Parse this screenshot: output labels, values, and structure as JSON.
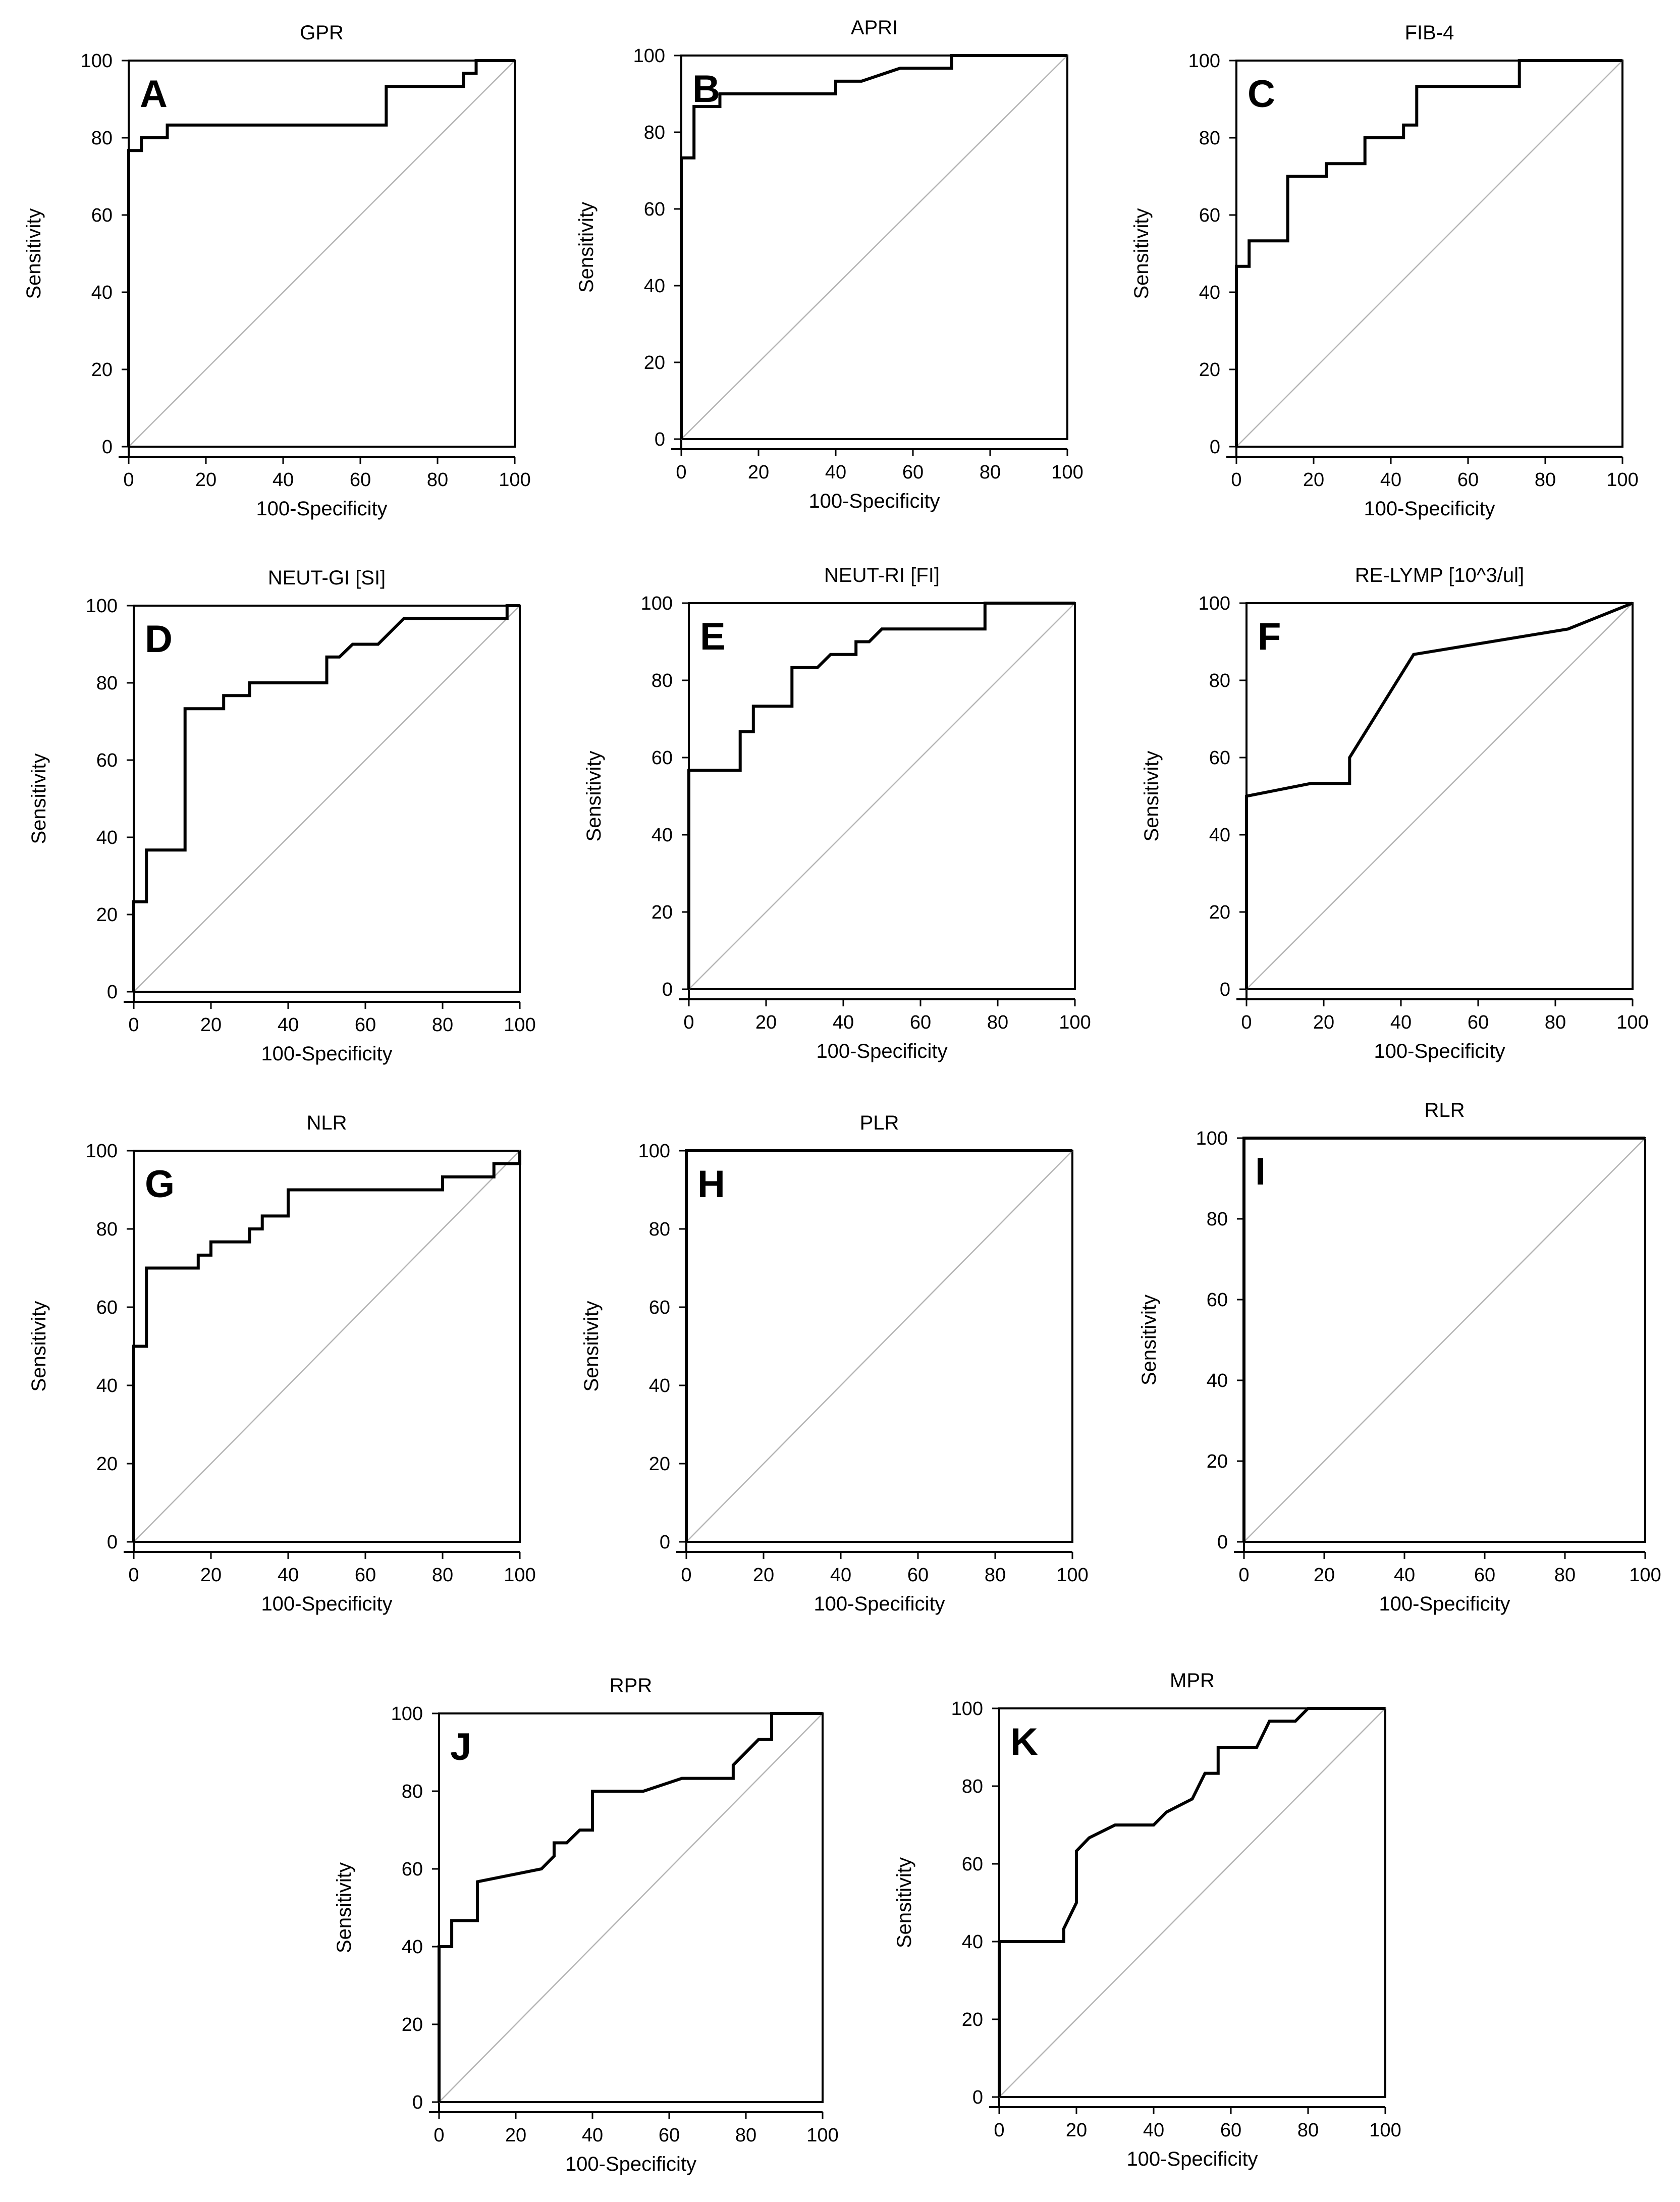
{
  "chart_data": [
    {
      "type": "line",
      "letter": "A",
      "title": "GPR",
      "xlabel": "100-Specificity",
      "ylabel": "Sensitivity",
      "xlim": [
        0,
        100
      ],
      "ylim": [
        0,
        100
      ],
      "xticks": [
        0,
        20,
        40,
        60,
        80,
        100
      ],
      "yticks": [
        0,
        20,
        40,
        60,
        80,
        100
      ],
      "diagonal": true,
      "x": [
        0,
        0,
        3.3,
        3.3,
        10,
        10,
        66.7,
        66.7,
        86.7,
        86.7,
        90,
        90,
        100
      ],
      "y": [
        0,
        76.7,
        76.7,
        80,
        80,
        83.3,
        83.3,
        93.3,
        93.3,
        96.7,
        96.7,
        100,
        100
      ]
    },
    {
      "type": "line",
      "letter": "B",
      "title": "APRI",
      "xlabel": "100-Specificity",
      "ylabel": "Sensitivity",
      "xlim": [
        0,
        100
      ],
      "ylim": [
        0,
        100
      ],
      "xticks": [
        0,
        20,
        40,
        60,
        80,
        100
      ],
      "yticks": [
        0,
        20,
        40,
        60,
        80,
        100
      ],
      "diagonal": true,
      "x": [
        0,
        0,
        3.3,
        3.3,
        10,
        10,
        40,
        40,
        46.7,
        56.7,
        70,
        70,
        100
      ],
      "y": [
        0,
        73.3,
        73.3,
        86.7,
        86.7,
        90,
        90,
        93.3,
        93.3,
        96.7,
        96.7,
        100,
        100
      ]
    },
    {
      "type": "line",
      "letter": "C",
      "title": "FIB-4",
      "xlabel": "100-Specificity",
      "ylabel": "Sensitivity",
      "xlim": [
        0,
        100
      ],
      "ylim": [
        0,
        100
      ],
      "xticks": [
        0,
        20,
        40,
        60,
        80,
        100
      ],
      "yticks": [
        0,
        20,
        40,
        60,
        80,
        100
      ],
      "diagonal": true,
      "x": [
        0,
        0,
        3.3,
        3.3,
        13.3,
        13.3,
        23.3,
        23.3,
        33.3,
        33.3,
        43.3,
        43.3,
        46.7,
        46.7,
        73.3,
        73.3,
        100
      ],
      "y": [
        0,
        46.7,
        46.7,
        53.3,
        53.3,
        70,
        70,
        73.3,
        73.3,
        80,
        80,
        83.3,
        83.3,
        93.3,
        93.3,
        100,
        100
      ]
    },
    {
      "type": "line",
      "letter": "D",
      "title": "NEUT-GI [SI]",
      "xlabel": "100-Specificity",
      "ylabel": "Sensitivity",
      "xlim": [
        0,
        100
      ],
      "ylim": [
        0,
        100
      ],
      "xticks": [
        0,
        20,
        40,
        60,
        80,
        100
      ],
      "yticks": [
        0,
        20,
        40,
        60,
        80,
        100
      ],
      "diagonal": true,
      "x": [
        0,
        0,
        3.3,
        3.3,
        13.3,
        13.3,
        23.3,
        23.3,
        30,
        30,
        50,
        50,
        53.3,
        56.7,
        63.3,
        70,
        96.7,
        96.7,
        100
      ],
      "y": [
        0,
        23.3,
        23.3,
        36.7,
        36.7,
        73.3,
        73.3,
        76.7,
        76.7,
        80,
        80,
        86.7,
        86.7,
        90,
        90,
        96.7,
        96.7,
        100,
        100
      ]
    },
    {
      "type": "line",
      "letter": "E",
      "title": "NEUT-RI [FI]",
      "xlabel": "100-Specificity",
      "ylabel": "Sensitivity",
      "xlim": [
        0,
        100
      ],
      "ylim": [
        0,
        100
      ],
      "xticks": [
        0,
        20,
        40,
        60,
        80,
        100
      ],
      "yticks": [
        0,
        20,
        40,
        60,
        80,
        100
      ],
      "diagonal": true,
      "x": [
        0,
        0,
        13.3,
        13.3,
        16.7,
        16.7,
        26.7,
        26.7,
        33.3,
        36.7,
        43.3,
        43.3,
        46.7,
        50,
        76.7,
        76.7,
        100
      ],
      "y": [
        0,
        56.7,
        56.7,
        66.7,
        66.7,
        73.3,
        73.3,
        83.3,
        83.3,
        86.7,
        86.7,
        90,
        90,
        93.3,
        93.3,
        100,
        100
      ]
    },
    {
      "type": "line",
      "letter": "F",
      "title": "RE-LYMP [10^3/ul]",
      "xlabel": "100-Specificity",
      "ylabel": "Sensitivity",
      "xlim": [
        0,
        100
      ],
      "ylim": [
        0,
        100
      ],
      "xticks": [
        0,
        20,
        40,
        60,
        80,
        100
      ],
      "yticks": [
        0,
        20,
        40,
        60,
        80,
        100
      ],
      "diagonal": true,
      "x": [
        0,
        0,
        16.7,
        26.7,
        26.7,
        43.3,
        83.3,
        100
      ],
      "y": [
        0,
        50,
        53.3,
        53.3,
        60,
        86.7,
        93.3,
        100
      ]
    },
    {
      "type": "line",
      "letter": "G",
      "title": "NLR",
      "xlabel": "100-Specificity",
      "ylabel": "Sensitivity",
      "xlim": [
        0,
        100
      ],
      "ylim": [
        0,
        100
      ],
      "xticks": [
        0,
        20,
        40,
        60,
        80,
        100
      ],
      "yticks": [
        0,
        20,
        40,
        60,
        80,
        100
      ],
      "diagonal": true,
      "x": [
        0,
        0,
        3.3,
        3.3,
        16.7,
        16.7,
        20,
        20,
        30,
        30,
        33.3,
        33.3,
        40,
        40,
        80,
        80,
        93.3,
        93.3,
        100,
        100
      ],
      "y": [
        0,
        50,
        50,
        70,
        70,
        73.3,
        73.3,
        76.7,
        76.7,
        80,
        80,
        83.3,
        83.3,
        90,
        90,
        93.3,
        93.3,
        96.7,
        96.7,
        100
      ]
    },
    {
      "type": "line",
      "letter": "H",
      "title": "PLR",
      "xlabel": "100-Specificity",
      "ylabel": "Sensitivity",
      "xlim": [
        0,
        100
      ],
      "ylim": [
        0,
        100
      ],
      "xticks": [
        0,
        20,
        40,
        60,
        80,
        100
      ],
      "yticks": [
        0,
        20,
        40,
        60,
        80,
        100
      ],
      "diagonal": true,
      "x": [
        0,
        0,
        100
      ],
      "y": [
        0,
        100,
        100
      ]
    },
    {
      "type": "line",
      "letter": "I",
      "title": "RLR",
      "xlabel": "100-Specificity",
      "ylabel": "Sensitivity",
      "xlim": [
        0,
        100
      ],
      "ylim": [
        0,
        100
      ],
      "xticks": [
        0,
        20,
        40,
        60,
        80,
        100
      ],
      "yticks": [
        0,
        20,
        40,
        60,
        80,
        100
      ],
      "diagonal": true,
      "x": [
        0,
        0,
        100
      ],
      "y": [
        0,
        100,
        100
      ]
    },
    {
      "type": "line",
      "letter": "J",
      "title": "RPR",
      "xlabel": "100-Specificity",
      "ylabel": "Sensitivity",
      "xlim": [
        0,
        100
      ],
      "ylim": [
        0,
        100
      ],
      "xticks": [
        0,
        20,
        40,
        60,
        80,
        100
      ],
      "yticks": [
        0,
        20,
        40,
        60,
        80,
        100
      ],
      "diagonal": true,
      "x": [
        0,
        0,
        3.3,
        3.3,
        10,
        10,
        26.7,
        30,
        30,
        33.3,
        36.7,
        40,
        40,
        53.3,
        63.3,
        76.7,
        76.7,
        83.3,
        86.7,
        86.7,
        100
      ],
      "y": [
        0,
        40,
        40,
        46.7,
        46.7,
        56.7,
        60,
        63.3,
        66.7,
        66.7,
        70,
        70,
        80,
        80,
        83.3,
        83.3,
        86.7,
        93.3,
        93.3,
        100,
        100
      ]
    },
    {
      "type": "line",
      "letter": "K",
      "title": "MPR",
      "xlabel": "100-Specificity",
      "ylabel": "Sensitivity",
      "xlim": [
        0,
        100
      ],
      "ylim": [
        0,
        100
      ],
      "xticks": [
        0,
        20,
        40,
        60,
        80,
        100
      ],
      "yticks": [
        0,
        20,
        40,
        60,
        80,
        100
      ],
      "diagonal": true,
      "x": [
        0,
        0,
        16.7,
        16.7,
        20,
        20,
        23.3,
        30,
        40,
        43.3,
        50,
        53.3,
        56.7,
        56.7,
        66.7,
        70,
        76.7,
        80,
        100
      ],
      "y": [
        0,
        40,
        40,
        43.3,
        50,
        63.3,
        66.7,
        70,
        70,
        73.3,
        76.7,
        83.3,
        83.3,
        90,
        90,
        96.7,
        96.7,
        100,
        100
      ]
    }
  ]
}
